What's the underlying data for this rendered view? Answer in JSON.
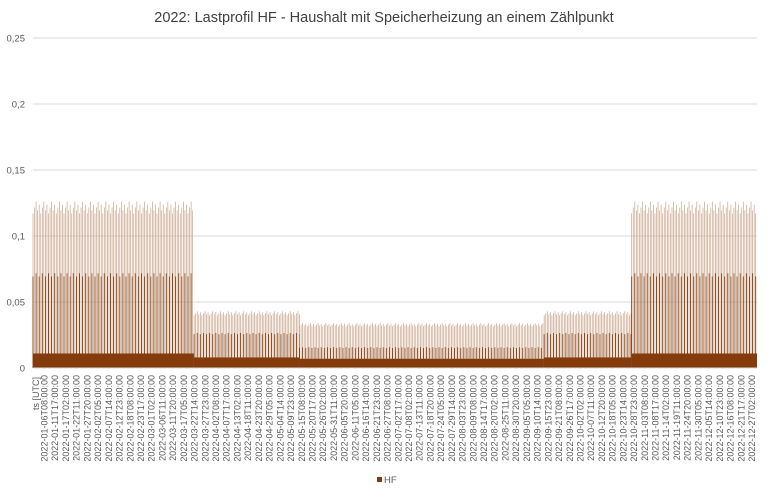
{
  "chart_data": {
    "type": "bar",
    "title": "2022: Lastprofil HF - Haushalt mit Speicherheizung an einem Zählpunkt",
    "xlabel": "ts [UTC]",
    "ylabel": "",
    "ylim": [
      0,
      0.25
    ],
    "yticks": [
      "0",
      "0,05",
      "0,1",
      "0,15",
      "0,2",
      "0,25"
    ],
    "ytick_values": [
      0,
      0.05,
      0.1,
      0.15,
      0.2,
      0.25
    ],
    "grid": true,
    "legend_position": "bottom",
    "series": [
      {
        "name": "HF",
        "color": "#843C0C",
        "segments": [
          {
            "from": "2022-01-01",
            "to": "2022-03-23",
            "max": 0.126,
            "band": 0.073,
            "base": 0.011
          },
          {
            "from": "2022-03-23",
            "to": "2022-05-15",
            "max": 0.043,
            "band": 0.027,
            "base": 0.008
          },
          {
            "from": "2022-05-15",
            "to": "2022-09-15",
            "max": 0.034,
            "band": 0.016,
            "base": 0.007
          },
          {
            "from": "2022-09-15",
            "to": "2022-10-29",
            "max": 0.043,
            "band": 0.027,
            "base": 0.008
          },
          {
            "from": "2022-10-29",
            "to": "2022-12-31",
            "max": 0.126,
            "band": 0.073,
            "base": 0.011
          }
        ]
      }
    ],
    "xticks": [
      "2022-01-06T08:00:00",
      "2022-01-11T17:00:00",
      "2022-01-17T02:00:00",
      "2022-01-22T11:00:00",
      "2022-01-27T20:00:00",
      "2022-02-02T05:00:00",
      "2022-02-07T14:00:00",
      "2022-02-12T23:00:00",
      "2022-02-18T08:00:00",
      "2022-02-23T17:00:00",
      "2022-03-01T02:00:00",
      "2022-03-06T11:00:00",
      "2022-03-11T20:00:00",
      "2022-03-17T05:00:00",
      "2022-03-22T14:00:00",
      "2022-03-27T23:00:00",
      "2022-04-02T08:00:00",
      "2022-04-07T17:00:00",
      "2022-04-13T02:00:00",
      "2022-04-18T11:00:00",
      "2022-04-23T20:00:00",
      "2022-04-29T05:00:00",
      "2022-05-04T14:00:00",
      "2022-05-09T23:00:00",
      "2022-05-15T08:00:00",
      "2022-05-20T17:00:00",
      "2022-05-26T02:00:00",
      "2022-05-31T11:00:00",
      "2022-06-05T20:00:00",
      "2022-06-11T05:00:00",
      "2022-06-16T14:00:00",
      "2022-06-21T23:00:00",
      "2022-06-27T08:00:00",
      "2022-07-02T17:00:00",
      "2022-07-08T02:00:00",
      "2022-07-13T11:00:00",
      "2022-07-18T20:00:00",
      "2022-07-24T05:00:00",
      "2022-07-29T14:00:00",
      "2022-08-03T23:00:00",
      "2022-08-09T08:00:00",
      "2022-08-14T17:00:00",
      "2022-08-20T02:00:00",
      "2022-08-25T11:00:00",
      "2022-08-30T20:00:00",
      "2022-09-05T05:00:00",
      "2022-09-10T14:00:00",
      "2022-09-15T23:00:00",
      "2022-09-21T08:00:00",
      "2022-09-26T17:00:00",
      "2022-10-02T02:00:00",
      "2022-10-07T11:00:00",
      "2022-10-12T20:00:00",
      "2022-10-18T05:00:00",
      "2022-10-23T14:00:00",
      "2022-10-28T23:00:00",
      "2022-11-03T08:00:00",
      "2022-11-08T17:00:00",
      "2022-11-14T02:00:00",
      "2022-11-19T11:00:00",
      "2022-11-24T20:00:00",
      "2022-11-30T05:00:00",
      "2022-12-05T14:00:00",
      "2022-12-10T23:00:00",
      "2022-12-16T08:00:00",
      "2022-12-21T17:00:00",
      "2022-12-27T02:00:00"
    ]
  }
}
